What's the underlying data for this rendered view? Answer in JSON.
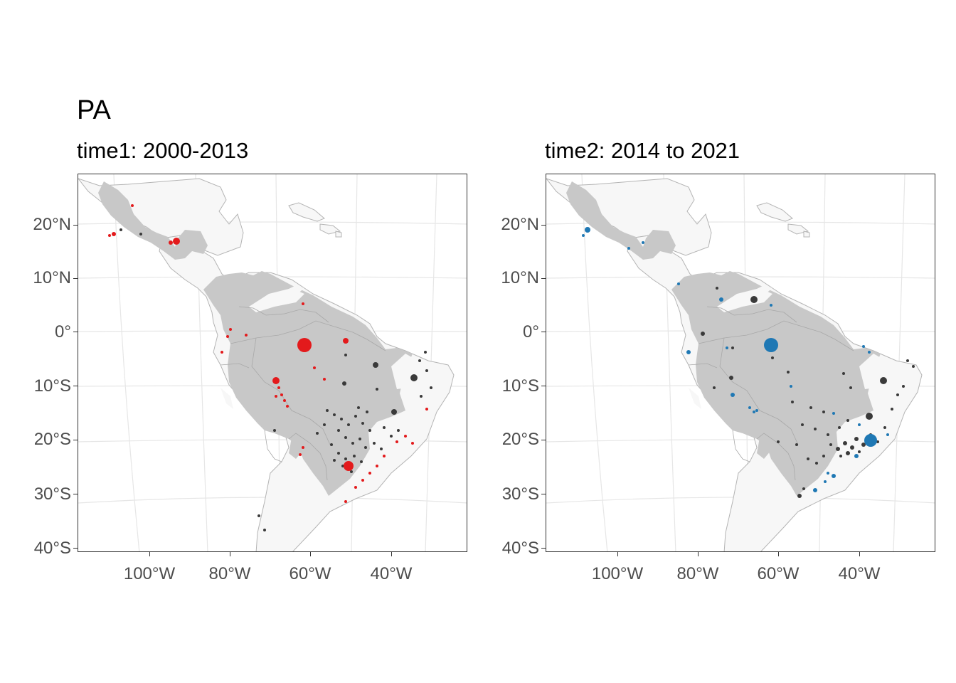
{
  "title": "PA",
  "panels": [
    {
      "subtitle": "time1: 2000-2013",
      "highlight_color": "#e31a1c"
    },
    {
      "subtitle": "time2: 2014 to 2021",
      "highlight_color": "#1f78b4"
    }
  ],
  "colors": {
    "land": "#f7f7f7",
    "biome": "#c8c8c8",
    "border": "#b4b4b4",
    "grid": "#e6e6e6",
    "other_points": "#3a3a3a"
  },
  "y_axis_labels": [
    "20°N",
    "10°N",
    "0°",
    "10°S",
    "20°S",
    "30°S",
    "40°S"
  ],
  "x_axis_labels": [
    "100°W",
    "80°W",
    "60°W",
    "40°W"
  ]
}
